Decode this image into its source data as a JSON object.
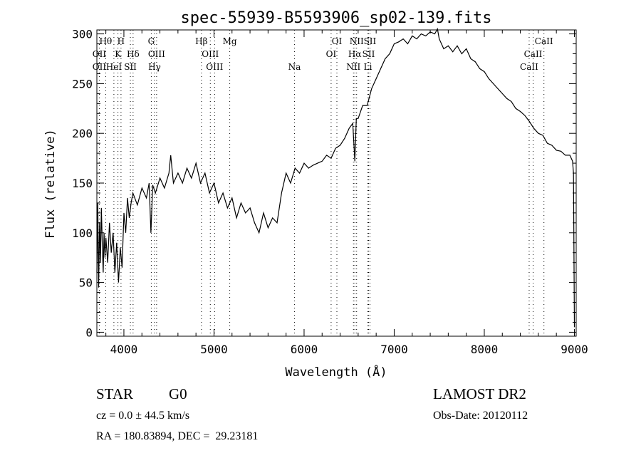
{
  "chart_data": {
    "type": "line",
    "title": "spec-55939-B5593906_sp02-139.fits",
    "xlabel": "Wavelength (Å)",
    "ylabel": "Flux (relative)",
    "xlim": [
      3700,
      9020
    ],
    "ylim": [
      -4,
      304
    ],
    "xticks": [
      4000,
      5000,
      6000,
      7000,
      8000,
      9000
    ],
    "yticks": [
      0,
      50,
      100,
      150,
      200,
      250,
      300
    ],
    "grid": false,
    "series": [
      {
        "name": "flux",
        "x": [
          3700,
          3710,
          3720,
          3730,
          3740,
          3750,
          3760,
          3770,
          3780,
          3790,
          3800,
          3820,
          3840,
          3860,
          3880,
          3900,
          3920,
          3940,
          3960,
          3980,
          4000,
          4020,
          4040,
          4060,
          4080,
          4100,
          4150,
          4200,
          4250,
          4280,
          4300,
          4320,
          4350,
          4400,
          4450,
          4500,
          4520,
          4550,
          4600,
          4650,
          4700,
          4750,
          4800,
          4850,
          4900,
          4950,
          5000,
          5050,
          5100,
          5150,
          5200,
          5250,
          5300,
          5350,
          5400,
          5450,
          5500,
          5550,
          5600,
          5650,
          5700,
          5750,
          5800,
          5850,
          5900,
          5950,
          6000,
          6050,
          6100,
          6150,
          6200,
          6250,
          6300,
          6350,
          6400,
          6450,
          6500,
          6540,
          6563,
          6580,
          6600,
          6650,
          6700,
          6750,
          6800,
          6850,
          6900,
          6950,
          7000,
          7050,
          7100,
          7150,
          7200,
          7250,
          7300,
          7350,
          7400,
          7450,
          7480,
          7500,
          7550,
          7600,
          7650,
          7700,
          7750,
          7800,
          7850,
          7900,
          7950,
          8000,
          8050,
          8100,
          8150,
          8200,
          8250,
          8300,
          8350,
          8400,
          8450,
          8500,
          8550,
          8600,
          8650,
          8700,
          8750,
          8800,
          8850,
          8900,
          8950,
          8980,
          8990,
          9000
        ],
        "y": [
          60,
          130,
          45,
          110,
          70,
          125,
          90,
          60,
          100,
          75,
          95,
          70,
          110,
          80,
          100,
          60,
          90,
          50,
          85,
          65,
          120,
          100,
          135,
          115,
          130,
          140,
          128,
          145,
          135,
          150,
          100,
          148,
          140,
          155,
          145,
          160,
          178,
          150,
          160,
          150,
          165,
          155,
          170,
          150,
          160,
          140,
          150,
          130,
          140,
          125,
          135,
          115,
          130,
          120,
          125,
          110,
          100,
          120,
          105,
          115,
          110,
          140,
          160,
          150,
          165,
          160,
          170,
          165,
          168,
          170,
          172,
          178,
          175,
          185,
          188,
          195,
          205,
          210,
          172,
          215,
          215,
          228,
          228,
          245,
          255,
          265,
          275,
          280,
          290,
          292,
          295,
          290,
          298,
          295,
          300,
          298,
          302,
          300,
          305,
          295,
          285,
          288,
          282,
          288,
          280,
          285,
          275,
          272,
          265,
          262,
          255,
          250,
          245,
          240,
          235,
          232,
          225,
          222,
          218,
          212,
          205,
          200,
          198,
          190,
          188,
          183,
          182,
          178,
          178,
          172,
          160,
          5
        ]
      }
    ],
    "line_markers": [
      {
        "label": "Hθ",
        "wavelength": 3798,
        "row": 1
      },
      {
        "label": "H",
        "wavelength": 3968,
        "row": 1
      },
      {
        "label": "G",
        "wavelength": 4304,
        "row": 1
      },
      {
        "label": "Hβ",
        "wavelength": 4861,
        "row": 1
      },
      {
        "label": "Mg",
        "wavelength": 5175,
        "row": 1
      },
      {
        "label": "OI",
        "wavelength": 6364,
        "row": 1
      },
      {
        "label": "NII",
        "wavelength": 6583,
        "row": 1
      },
      {
        "label": "SII",
        "wavelength": 6731,
        "row": 1
      },
      {
        "label": "CaII",
        "wavelength": 8662,
        "row": 1
      },
      {
        "label": "OII",
        "wavelength": 3727,
        "row": 2
      },
      {
        "label": "K",
        "wavelength": 3934,
        "row": 2
      },
      {
        "label": "Hδ",
        "wavelength": 4102,
        "row": 2
      },
      {
        "label": "OIII",
        "wavelength": 4363,
        "row": 2
      },
      {
        "label": "OIII",
        "wavelength": 4959,
        "row": 2
      },
      {
        "label": "OI",
        "wavelength": 6300,
        "row": 2
      },
      {
        "label": "Hα",
        "wavelength": 6563,
        "row": 2
      },
      {
        "label": "SII",
        "wavelength": 6716,
        "row": 2
      },
      {
        "label": "CaII",
        "wavelength": 8542,
        "row": 2
      },
      {
        "label": "OII",
        "wavelength": 3727,
        "row": 3
      },
      {
        "label": "HeI",
        "wavelength": 3889,
        "row": 3
      },
      {
        "label": "SII",
        "wavelength": 4072,
        "row": 3
      },
      {
        "label": "Hγ",
        "wavelength": 4340,
        "row": 3
      },
      {
        "label": "OIII",
        "wavelength": 5007,
        "row": 3
      },
      {
        "label": "Na",
        "wavelength": 5893,
        "row": 3
      },
      {
        "label": "NII",
        "wavelength": 6548,
        "row": 3
      },
      {
        "label": "Li",
        "wavelength": 6708,
        "row": 3
      },
      {
        "label": "CaII",
        "wavelength": 8498,
        "row": 3
      }
    ]
  },
  "info": {
    "object_class": "STAR",
    "subclass": "G0",
    "survey": "LAMOST DR2",
    "redshift": "cz = 0.0 ± 44.5 km/s",
    "obs_date": "Obs-Date: 20120112",
    "coords": "RA = 180.83894, DEC =  29.23181"
  }
}
